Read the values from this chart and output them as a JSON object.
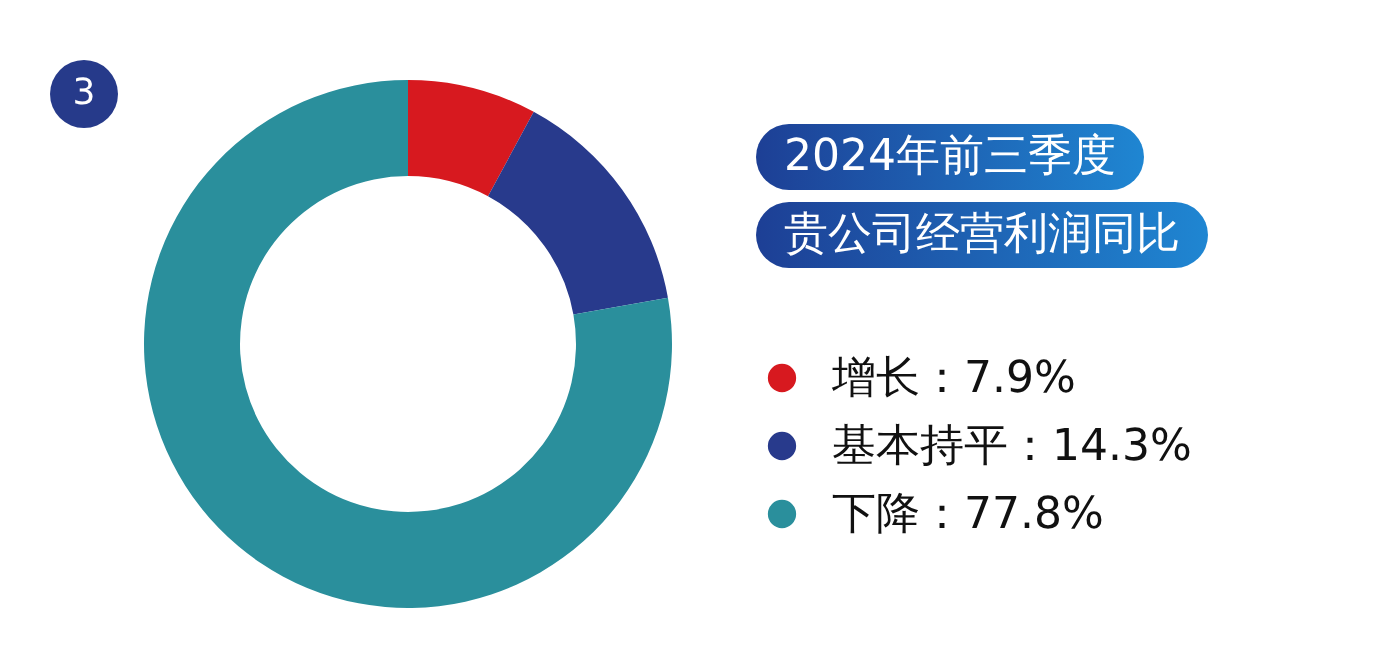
{
  "chart_data": {
    "type": "donut",
    "title": "2024年前三季度",
    "subtitle": "贵公司经营利润同比",
    "categories": [
      "增长",
      "基本持平",
      "下降"
    ],
    "values": [
      7.9,
      14.3,
      77.8
    ],
    "value_labels": [
      "7.9%",
      "14.3%",
      "77.8%"
    ],
    "colors": [
      "#d7191f",
      "#283a8c",
      "#2a8f9c"
    ],
    "legend": "right",
    "annotations": [
      "3"
    ]
  }
}
